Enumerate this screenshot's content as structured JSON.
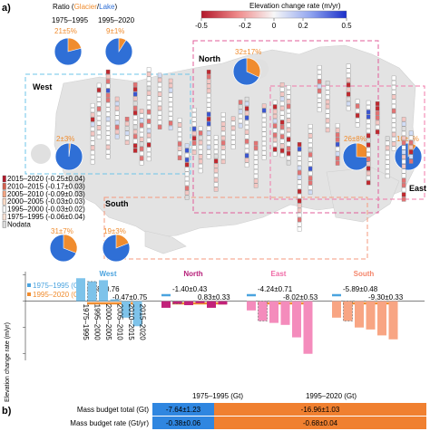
{
  "panels": {
    "a": "a)",
    "b": "b)"
  },
  "map": {
    "ratio_title": {
      "prefix": "Ratio (",
      "glacier": "Glacier",
      "slash": "/",
      "lake": "Lake",
      "suffix": ")"
    },
    "ratio_periods": [
      "1975–1995",
      "1995–2020"
    ],
    "colorbar": {
      "title": "Elevation change rate (m/yr)",
      "ticks": [
        "-0.5",
        "-0.2",
        "0",
        "0.2",
        "0.5"
      ],
      "range": [
        -0.5,
        0.5
      ]
    },
    "regions": [
      {
        "id": "west",
        "label": "West",
        "pies": [
          {
            "label": "2±3%",
            "lake_share": 0.02
          }
        ]
      },
      {
        "id": "north",
        "label": "North",
        "pies": [
          {
            "label": "32±17%",
            "lake_share": 0.32
          }
        ]
      },
      {
        "id": "east",
        "label": "East",
        "pies": [
          {
            "label": "26±8%",
            "lake_share": 0.26
          },
          {
            "label": "10±1%",
            "lake_share": 0.1
          }
        ]
      },
      {
        "id": "south",
        "label": "South",
        "pies": [
          {
            "label": "31±7%",
            "lake_share": 0.31
          },
          {
            "label": "19±3%",
            "lake_share": 0.19
          }
        ]
      }
    ],
    "top_pies": [
      {
        "label": "21±5%",
        "lake_share": 0.21
      },
      {
        "label": "9±1%",
        "lake_share": 0.09
      }
    ],
    "legend": [
      {
        "label": "2015–2020 (-0.25±0.04)",
        "color": "#b2182b"
      },
      {
        "label": "2010–2015 (-0.17±0.03)",
        "color": "#d6604d"
      },
      {
        "label": "2005–2010 (-0.09±0.03)",
        "color": "#f4a582"
      },
      {
        "label": "2000–2005 (-0.03±0.03)",
        "color": "#fddbc7"
      },
      {
        "label": "1995–2000 (-0.03±0.02)",
        "color": "#f7f7f7"
      },
      {
        "label": "1975–1995 (-0.06±0.04)",
        "color": "#fbe3d6"
      },
      {
        "label": "Nodata",
        "color": "#dddddd"
      }
    ]
  },
  "chart_data": [
    {
      "type": "bar",
      "ylabel": "Elevation change rate (m/yr)",
      "ylim": [
        -0.9,
        0.45
      ],
      "x_tick_labels": [
        "1975–1995",
        "1995–2000",
        "2000–2005",
        "2005–2010",
        "2010–2015",
        "2015–2020"
      ],
      "legend": [
        {
          "label": "1975–1995 (Gt)",
          "color": "#4aa3df"
        },
        {
          "label": "1995–2020 (Gt)",
          "color": "#f08c2e"
        }
      ],
      "groups": [
        {
          "name": "West",
          "color": "#7ec3ea",
          "title_color": "#4aa3df",
          "values": [
            0.35,
            0.3,
            0.32,
            0.03,
            -0.25,
            -0.38
          ],
          "value_1975_1995": "0.38±0.76",
          "value_1995_2020": "-0.47±0.75"
        },
        {
          "name": "North",
          "color": "#c2227a",
          "title_color": "#b7207a",
          "values": [
            -0.1,
            -0.04,
            -0.06,
            -0.03,
            -0.1,
            -0.05
          ],
          "value_1975_1995": "-1.40±0.43",
          "value_1995_2020": "0.83±0.33"
        },
        {
          "name": "East",
          "color": "#f48cbc",
          "title_color": "#f06aa6",
          "values": [
            -0.14,
            -0.3,
            -0.33,
            -0.36,
            -0.55,
            -0.8
          ],
          "value_1975_1995": "-4.24±0.71",
          "value_1995_2020": "-8.02±0.53"
        },
        {
          "name": "South",
          "color": "#f8a583",
          "title_color": "#f4866c",
          "values": [
            -0.25,
            -0.3,
            -0.4,
            -0.43,
            -0.52,
            -0.58
          ],
          "value_1975_1995": "-5.89±0.48",
          "value_1995_2020": "-9.30±0.33"
        }
      ]
    },
    {
      "type": "table",
      "columns": [
        "1975–1995 (Gt)",
        "1995–2020 (Gt)"
      ],
      "rows": [
        {
          "label": "Mass budget total (Gt)",
          "values": [
            "-7.64±1.23",
            "-16.96±1.03"
          ]
        },
        {
          "label": "Mass budget rate (Gt/yr)",
          "values": [
            "-0.38±0.06",
            "-0.68±0.04"
          ]
        }
      ],
      "colors": [
        "#2f86e0",
        "#f08030"
      ]
    }
  ]
}
